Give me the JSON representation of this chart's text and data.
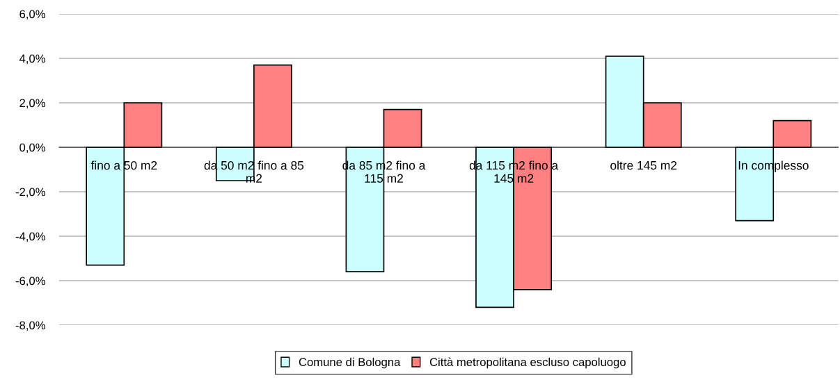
{
  "chart_data": {
    "type": "bar",
    "categories": [
      "fino a 50 m2",
      "da 50 m2 fino a 85 m2",
      "da 85 m2 fino a 115 m2",
      "da 115 m2 fino a 145 m2",
      "oltre 145 m2",
      "In complesso"
    ],
    "series": [
      {
        "name": "Comune di Bologna",
        "color": "#ccffff",
        "values": [
          -5.3,
          -1.5,
          -5.6,
          -7.2,
          4.1,
          -3.3
        ]
      },
      {
        "name": "Città metropolitana escluso capoluogo",
        "color": "#ff8080",
        "values": [
          2.0,
          3.7,
          1.7,
          -6.4,
          2.0,
          1.2
        ]
      }
    ],
    "ylim": [
      -8,
      6
    ],
    "yticks": [
      {
        "value": -8,
        "label": "-8,0%"
      },
      {
        "value": -6,
        "label": "-6,0%"
      },
      {
        "value": -4,
        "label": "-4,0%"
      },
      {
        "value": -2,
        "label": "-2,0%"
      },
      {
        "value": 0,
        "label": "0,0%"
      },
      {
        "value": 2,
        "label": "2,0%"
      },
      {
        "value": 4,
        "label": "4,0%"
      },
      {
        "value": 6,
        "label": "6,0%"
      }
    ],
    "grid": "y",
    "legend": "bottom"
  }
}
